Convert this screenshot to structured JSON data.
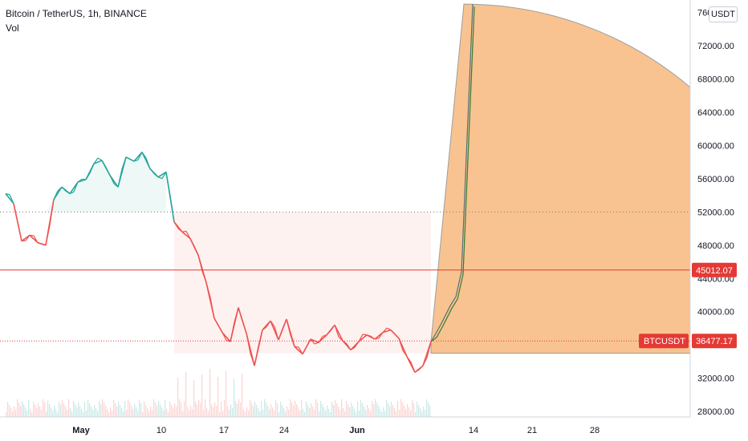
{
  "header": {
    "symbol": "Bitcoin / TetherUS, 1h, BINANCE",
    "volume_label": "Vol"
  },
  "currency_button": "USDT",
  "colors": {
    "up": "#26a69a",
    "down": "#ef5350",
    "projection_fill": "#f7b97c",
    "red_line": "#e53935",
    "tag_red": "#e53935"
  },
  "price_tags": {
    "level_price": "45012.07",
    "current_symbol": "BTCUSDT",
    "current_price": "36477.17"
  },
  "chart_data": {
    "type": "line",
    "title": "Bitcoin / TetherUS, 1h, BINANCE",
    "y_axis": {
      "ticks": [
        28000,
        32000,
        36000,
        40000,
        44000,
        48000,
        52000,
        56000,
        60000,
        64000,
        68000,
        72000,
        76000
      ],
      "tick_labels": [
        "28000.00",
        "32000.00",
        "36000.00",
        "40000.00",
        "44000.00",
        "48000.00",
        "52000.00",
        "56000.00",
        "60000.00",
        "64000.00",
        "68000.00",
        "72000.00",
        "76000.00"
      ],
      "ylim": [
        25600,
        77500
      ]
    },
    "x_axis": {
      "labels": [
        "May",
        "10",
        "17",
        "24",
        "Jun",
        "14",
        "21",
        "28"
      ],
      "bold_labels": [
        "May",
        "Jun"
      ]
    },
    "reference_levels": {
      "horizontal_line": 45012.07,
      "current_price_line": 36477.17,
      "dotted_level": 52000
    },
    "price_series": [
      {
        "x": "Apr 26",
        "y": 54200
      },
      {
        "x": "Apr 27",
        "y": 53000
      },
      {
        "x": "Apr 28",
        "y": 48500
      },
      {
        "x": "Apr 29",
        "y": 49200
      },
      {
        "x": "Apr 30",
        "y": 48300
      },
      {
        "x": "May 1",
        "y": 48000
      },
      {
        "x": "May 2",
        "y": 53500
      },
      {
        "x": "May 3",
        "y": 55000
      },
      {
        "x": "May 4",
        "y": 54200
      },
      {
        "x": "May 5",
        "y": 55600
      },
      {
        "x": "May 6",
        "y": 55900
      },
      {
        "x": "May 7",
        "y": 57800
      },
      {
        "x": "May 8",
        "y": 58200
      },
      {
        "x": "May 9",
        "y": 56400
      },
      {
        "x": "May 10",
        "y": 55000
      },
      {
        "x": "May 11",
        "y": 58600
      },
      {
        "x": "May 12",
        "y": 58100
      },
      {
        "x": "May 13",
        "y": 59200
      },
      {
        "x": "May 14",
        "y": 57200
      },
      {
        "x": "May 15",
        "y": 56200
      },
      {
        "x": "May 16",
        "y": 56800
      },
      {
        "x": "May 17",
        "y": 50800
      },
      {
        "x": "May 18",
        "y": 49600
      },
      {
        "x": "May 19",
        "y": 48800
      },
      {
        "x": "May 20",
        "y": 46800
      },
      {
        "x": "May 21",
        "y": 43500
      },
      {
        "x": "May 22",
        "y": 39200
      },
      {
        "x": "May 23",
        "y": 37500
      },
      {
        "x": "May 24",
        "y": 36400
      },
      {
        "x": "May 25",
        "y": 40500
      },
      {
        "x": "May 26",
        "y": 37400
      },
      {
        "x": "May 27",
        "y": 33500
      },
      {
        "x": "May 28",
        "y": 37800
      },
      {
        "x": "May 29",
        "y": 38900
      },
      {
        "x": "May 30",
        "y": 36600
      },
      {
        "x": "May 31",
        "y": 39100
      },
      {
        "x": "Jun 1",
        "y": 35800
      },
      {
        "x": "Jun 2",
        "y": 34900
      },
      {
        "x": "Jun 3",
        "y": 36700
      },
      {
        "x": "Jun 4",
        "y": 36300
      },
      {
        "x": "Jun 5",
        "y": 37200
      },
      {
        "x": "Jun 6",
        "y": 38400
      },
      {
        "x": "Jun 7",
        "y": 36500
      },
      {
        "x": "Jun 8",
        "y": 35400
      },
      {
        "x": "Jun 9",
        "y": 36400
      },
      {
        "x": "Jun 10",
        "y": 37200
      },
      {
        "x": "Jun 11",
        "y": 36700
      },
      {
        "x": "Jun 12",
        "y": 37500
      },
      {
        "x": "Jun 13",
        "y": 37800
      },
      {
        "x": "Jun 14",
        "y": 36800
      },
      {
        "x": "Jun 15",
        "y": 34600
      },
      {
        "x": "Jun 16",
        "y": 32700
      },
      {
        "x": "Jun 17",
        "y": 33500
      },
      {
        "x": "Jun 18",
        "y": 36400
      }
    ],
    "projection": {
      "start_price": 36400,
      "peak_price": 77000,
      "floor_price": 35000,
      "path_prices": [
        37200,
        38600,
        40700,
        41800,
        44800,
        77000
      ]
    }
  }
}
